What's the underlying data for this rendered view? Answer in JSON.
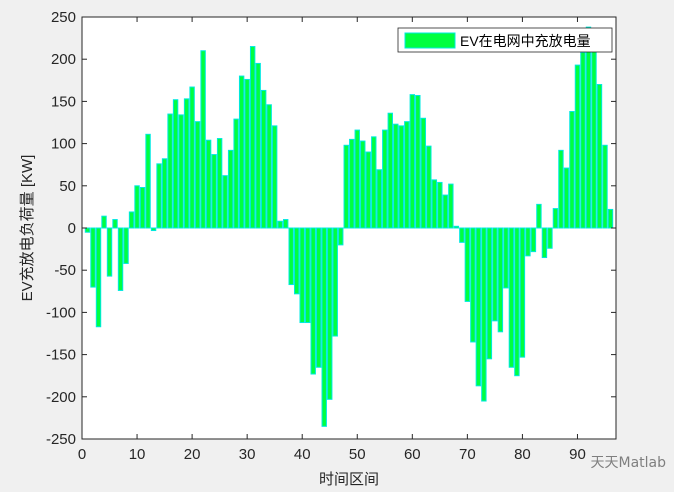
{
  "chart_data": {
    "type": "bar",
    "title": "",
    "xlabel": "时间区间",
    "ylabel": "EV充放电负荷量 [KW]",
    "xlim": [
      0,
      97
    ],
    "ylim": [
      -250,
      250
    ],
    "xticks": [
      0,
      10,
      20,
      30,
      40,
      50,
      60,
      70,
      80,
      90
    ],
    "yticks": [
      -250,
      -200,
      -150,
      -100,
      -50,
      0,
      50,
      100,
      150,
      200,
      250
    ],
    "grid": false,
    "legend_placement": "top-right",
    "series": [
      {
        "name": "EV在电网中充放电量",
        "face_color": "#00ff40",
        "edge_color": "#00e8e0",
        "x": [
          1,
          2,
          3,
          4,
          5,
          6,
          7,
          8,
          9,
          10,
          11,
          12,
          13,
          14,
          15,
          16,
          17,
          18,
          19,
          20,
          21,
          22,
          23,
          24,
          25,
          26,
          27,
          28,
          29,
          30,
          31,
          32,
          33,
          34,
          35,
          36,
          37,
          38,
          39,
          40,
          41,
          42,
          43,
          44,
          45,
          46,
          47,
          48,
          49,
          50,
          51,
          52,
          53,
          54,
          55,
          56,
          57,
          58,
          59,
          60,
          61,
          62,
          63,
          64,
          65,
          66,
          67,
          68,
          69,
          70,
          71,
          72,
          73,
          74,
          75,
          76,
          77,
          78,
          79,
          80,
          81,
          82,
          83,
          84,
          85,
          86,
          87,
          88,
          89,
          90,
          91,
          92,
          93,
          94,
          95,
          96
        ],
        "values": [
          -5,
          -70,
          -117,
          14,
          -57,
          10,
          -74,
          -42,
          19,
          50,
          48,
          111,
          -3,
          76,
          82,
          135,
          152,
          134,
          153,
          167,
          126,
          210,
          104,
          87,
          106,
          62,
          92,
          129,
          180,
          176,
          215,
          195,
          163,
          146,
          121,
          8,
          10,
          -67,
          -78,
          -112,
          -112,
          -173,
          -165,
          -235,
          -203,
          -128,
          -20,
          98,
          105,
          116,
          103,
          90,
          108,
          69,
          116,
          136,
          123,
          121,
          126,
          158,
          157,
          130,
          97,
          57,
          54,
          39,
          52,
          2,
          -17,
          -87,
          -135,
          -187,
          -205,
          -155,
          -110,
          -123,
          -71,
          -165,
          -175,
          -153,
          -33,
          -28,
          28,
          -35,
          -24,
          23,
          92,
          71,
          138,
          193,
          208,
          238,
          232,
          170,
          98,
          22
        ]
      }
    ]
  },
  "watermark": "天天Matlab"
}
